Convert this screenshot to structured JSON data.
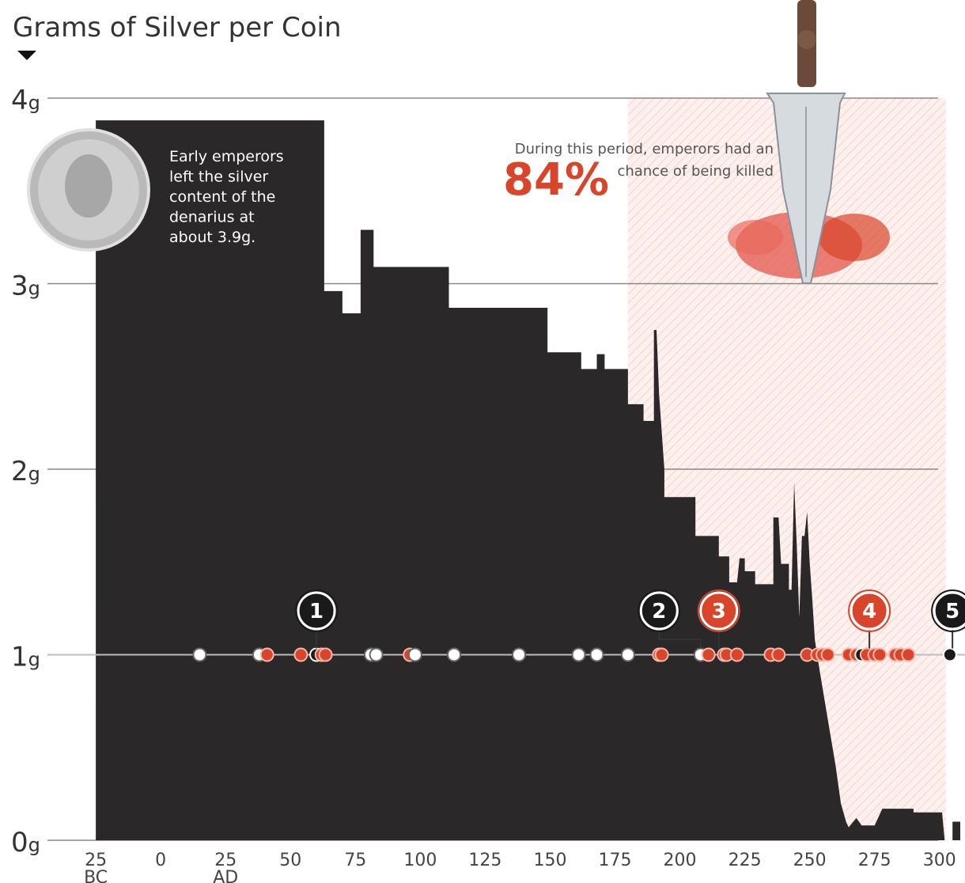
{
  "chart_data": {
    "type": "area",
    "title": "Grams of Silver per Coin",
    "y_ticks": [
      {
        "value": 4,
        "label": "4g"
      },
      {
        "value": 3,
        "label": "3g"
      },
      {
        "value": 2,
        "label": "2g"
      },
      {
        "value": 1,
        "label": "1g"
      },
      {
        "value": 0,
        "label": "0g"
      }
    ],
    "x_ticks": [
      {
        "value": -25,
        "label": "25",
        "sub": "BC"
      },
      {
        "value": 0,
        "label": "0",
        "sub": ""
      },
      {
        "value": 25,
        "label": "25",
        "sub": "AD"
      },
      {
        "value": 50,
        "label": "50",
        "sub": ""
      },
      {
        "value": 75,
        "label": "75",
        "sub": ""
      },
      {
        "value": 100,
        "label": "100",
        "sub": ""
      },
      {
        "value": 125,
        "label": "125",
        "sub": ""
      },
      {
        "value": 150,
        "label": "150",
        "sub": ""
      },
      {
        "value": 175,
        "label": "175",
        "sub": ""
      },
      {
        "value": 200,
        "label": "200",
        "sub": ""
      },
      {
        "value": 225,
        "label": "225",
        "sub": ""
      },
      {
        "value": 250,
        "label": "250",
        "sub": ""
      },
      {
        "value": 275,
        "label": "275",
        "sub": ""
      },
      {
        "value": 300,
        "label": "300",
        "sub": ""
      }
    ],
    "xlim": [
      -29,
      308
    ],
    "ylim": [
      0,
      4
    ],
    "silver_content": [
      [
        -25,
        3.88
      ],
      [
        63,
        3.88
      ],
      [
        63,
        2.96
      ],
      [
        70,
        2.96
      ],
      [
        70,
        2.84
      ],
      [
        77,
        2.84
      ],
      [
        77,
        3.29
      ],
      [
        82,
        3.29
      ],
      [
        82,
        3.09
      ],
      [
        111,
        3.09
      ],
      [
        111,
        2.87
      ],
      [
        149,
        2.87
      ],
      [
        149,
        2.63
      ],
      [
        162,
        2.63
      ],
      [
        162,
        2.54
      ],
      [
        168,
        2.54
      ],
      [
        168,
        2.62
      ],
      [
        171,
        2.62
      ],
      [
        171,
        2.54
      ],
      [
        180,
        2.54
      ],
      [
        180,
        2.35
      ],
      [
        186,
        2.35
      ],
      [
        186,
        2.26
      ],
      [
        190,
        2.26
      ],
      [
        190,
        2.75
      ],
      [
        191,
        2.75
      ],
      [
        192,
        2.4
      ],
      [
        194,
        2.0
      ],
      [
        194,
        1.85
      ],
      [
        206,
        1.85
      ],
      [
        206,
        1.64
      ],
      [
        215,
        1.64
      ],
      [
        215,
        1.53
      ],
      [
        219,
        1.53
      ],
      [
        219,
        1.39
      ],
      [
        222,
        1.39
      ],
      [
        223,
        1.52
      ],
      [
        225,
        1.52
      ],
      [
        225,
        1.45
      ],
      [
        229,
        1.45
      ],
      [
        229,
        1.38
      ],
      [
        236,
        1.38
      ],
      [
        236,
        1.74
      ],
      [
        238,
        1.74
      ],
      [
        239,
        1.49
      ],
      [
        242,
        1.49
      ],
      [
        242,
        1.35
      ],
      [
        243,
        1.35
      ],
      [
        244,
        1.93
      ],
      [
        245,
        1.6
      ],
      [
        246,
        1.2
      ],
      [
        247,
        1.64
      ],
      [
        248,
        1.64
      ],
      [
        249,
        1.77
      ],
      [
        250,
        1.5
      ],
      [
        251,
        1.3
      ],
      [
        252,
        1.08
      ],
      [
        254,
        0.9
      ],
      [
        257,
        0.65
      ],
      [
        260,
        0.4
      ],
      [
        262,
        0.2
      ],
      [
        264,
        0.1
      ],
      [
        265,
        0.07
      ],
      [
        268,
        0.12
      ],
      [
        270,
        0.08
      ],
      [
        275,
        0.08
      ],
      [
        278,
        0.17
      ],
      [
        290,
        0.17
      ],
      [
        290,
        0.15
      ],
      [
        301,
        0.15
      ],
      [
        302,
        0.0
      ],
      [
        305,
        0.0
      ],
      [
        305,
        0.1
      ],
      [
        308,
        0.1
      ]
    ],
    "period_of_danger": [
      180,
      300
    ],
    "emperor_timeline_y": 1,
    "emperor_dots": [
      {
        "x": 15,
        "fate": "other"
      },
      {
        "x": 38,
        "fate": "other"
      },
      {
        "x": 41,
        "fate": "killed"
      },
      {
        "x": 54,
        "fate": "killed"
      },
      {
        "x": 60,
        "fate": "natural"
      },
      {
        "x": 62,
        "fate": "killed"
      },
      {
        "x": 63.5,
        "fate": "killed"
      },
      {
        "x": 81,
        "fate": "other"
      },
      {
        "x": 83,
        "fate": "other"
      },
      {
        "x": 96,
        "fate": "killed"
      },
      {
        "x": 98,
        "fate": "other"
      },
      {
        "x": 113,
        "fate": "other"
      },
      {
        "x": 138,
        "fate": "other"
      },
      {
        "x": 161,
        "fate": "other"
      },
      {
        "x": 168,
        "fate": "other"
      },
      {
        "x": 180,
        "fate": "other"
      },
      {
        "x": 192,
        "fate": "killed"
      },
      {
        "x": 193,
        "fate": "killed"
      },
      {
        "x": 208,
        "fate": "other"
      },
      {
        "x": 211,
        "fate": "killed"
      },
      {
        "x": 217,
        "fate": "killed"
      },
      {
        "x": 218,
        "fate": "killed"
      },
      {
        "x": 222,
        "fate": "killed"
      },
      {
        "x": 235,
        "fate": "killed"
      },
      {
        "x": 238,
        "fate": "killed"
      },
      {
        "x": 249,
        "fate": "killed"
      },
      {
        "x": 253,
        "fate": "killed"
      },
      {
        "x": 255,
        "fate": "killed"
      },
      {
        "x": 257,
        "fate": "killed"
      },
      {
        "x": 265,
        "fate": "killed"
      },
      {
        "x": 268,
        "fate": "killed"
      },
      {
        "x": 270,
        "fate": "natural"
      },
      {
        "x": 272,
        "fate": "killed"
      },
      {
        "x": 275,
        "fate": "killed"
      },
      {
        "x": 277,
        "fate": "killed"
      },
      {
        "x": 283,
        "fate": "killed"
      },
      {
        "x": 285,
        "fate": "killed"
      },
      {
        "x": 288,
        "fate": "killed"
      },
      {
        "x": 304,
        "fate": "natural"
      }
    ],
    "numbered_markers": [
      {
        "label": "1",
        "x": 60,
        "fate": "natural"
      },
      {
        "label": "2",
        "x": 192,
        "fate": "other",
        "target_x": 208
      },
      {
        "label": "3",
        "x": 215,
        "fate": "killed"
      },
      {
        "label": "4",
        "x": 273,
        "fate": "killed"
      },
      {
        "label": "5",
        "x": 305,
        "fate": "natural"
      }
    ],
    "annotations": {
      "coin_note": [
        "Early emperors",
        "left the silver",
        "content of the",
        "denarius at",
        "about 3.9g."
      ],
      "period_note_line1": "During this period, emperors had an",
      "period_note_line2": "chance of being killed",
      "period_pct": "84%"
    },
    "colors": {
      "area": "#2b282a",
      "killed": "#d9452a",
      "natural": "#1a1a1a",
      "other": "#ffffff",
      "danger_shade": "#fbe9e6",
      "gridline": "#888888"
    }
  }
}
